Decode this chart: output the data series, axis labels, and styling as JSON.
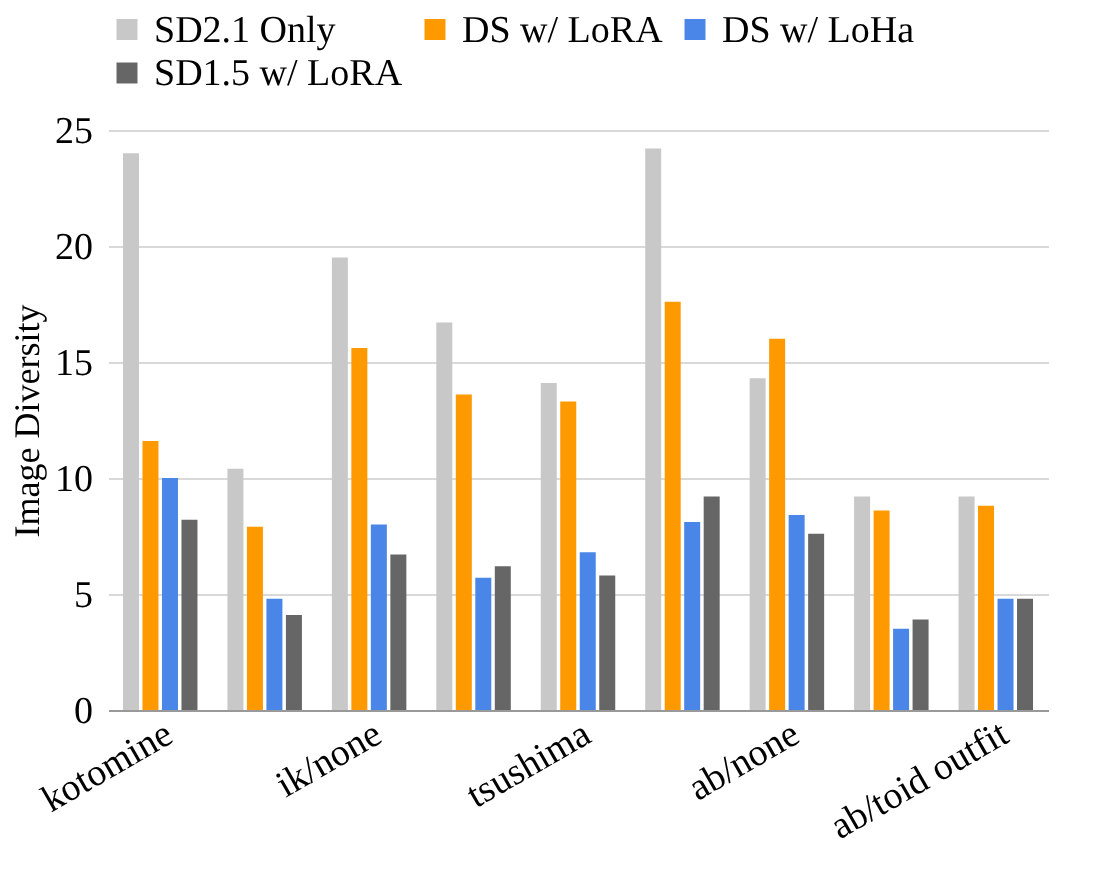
{
  "chart_data": {
    "type": "bar",
    "ylabel": "Image Diversity",
    "categories": [
      "kotomine",
      null,
      "ik/none",
      null,
      "tsushima",
      null,
      "ab/none",
      null,
      "ab/toid outfit"
    ],
    "series": [
      {
        "name": "SD2.1 Only",
        "color": "#c8c8c8",
        "values": [
          24.0,
          10.4,
          19.5,
          16.7,
          14.1,
          24.2,
          14.3,
          9.2,
          9.2
        ]
      },
      {
        "name": "DS w/ LoRA",
        "color": "#ff9900",
        "values": [
          11.6,
          7.9,
          15.6,
          13.6,
          13.3,
          17.6,
          16.0,
          8.6,
          8.8
        ]
      },
      {
        "name": "DS w/ LoHa",
        "color": "#4a86e8",
        "values": [
          10.0,
          4.8,
          8.0,
          5.7,
          6.8,
          8.1,
          8.4,
          3.5,
          4.8
        ]
      },
      {
        "name": "SD1.5 w/ LoRA",
        "color": "#666666",
        "values": [
          8.2,
          4.1,
          6.7,
          6.2,
          5.8,
          9.2,
          7.6,
          3.9,
          4.8
        ]
      }
    ],
    "ylim": [
      0,
      25
    ],
    "yticks": [
      0,
      5,
      10,
      15,
      20,
      25
    ],
    "grid": "y",
    "legend": "top"
  }
}
